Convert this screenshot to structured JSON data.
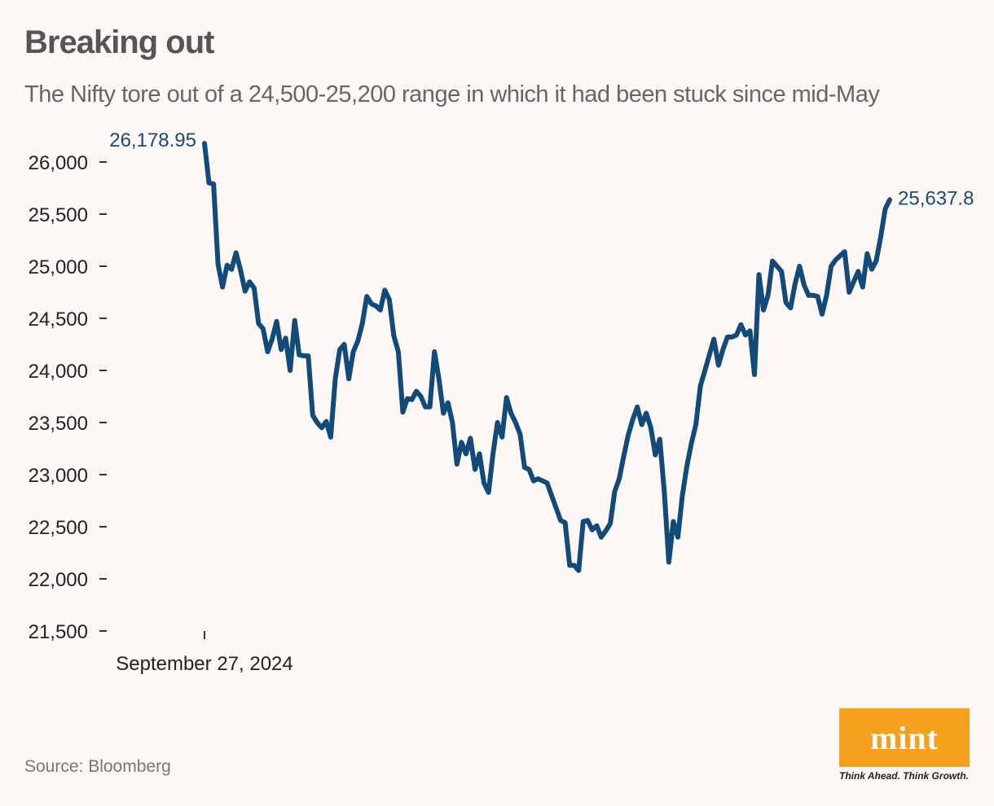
{
  "title": "Breaking out",
  "subtitle": "The Nifty tore out of a 24,500-25,200 range in which it had been stuck since mid-May",
  "source": "Source: Bloomberg",
  "logo": {
    "text": "mint",
    "tagline": "Think Ahead. Think Growth."
  },
  "colors": {
    "line": "#124a7a",
    "background": "#fdf7f6",
    "logo": "#f5a01e"
  },
  "chart_data": {
    "type": "line",
    "title": "Breaking out",
    "subtitle": "The Nifty tore out of a 24,500-25,200 range in which it had been stuck since mid-May",
    "ylim": [
      21500,
      26200
    ],
    "yticks": [
      {
        "value": 21500,
        "label": "21,500"
      },
      {
        "value": 22000,
        "label": "22,000"
      },
      {
        "value": 22500,
        "label": "22,500"
      },
      {
        "value": 23000,
        "label": "23,000"
      },
      {
        "value": 23500,
        "label": "23,500"
      },
      {
        "value": 24000,
        "label": "24,000"
      },
      {
        "value": 24500,
        "label": "24,500"
      },
      {
        "value": 25000,
        "label": "25,000"
      },
      {
        "value": 25500,
        "label": "25,500"
      },
      {
        "value": 26000,
        "label": "26,000"
      }
    ],
    "xtick_label": "September 27, 2024",
    "grid": false,
    "annotations": [
      {
        "point": "first",
        "label": "26,178.95"
      },
      {
        "point": "last",
        "label": "25,637.8"
      }
    ],
    "series": [
      {
        "values": [
          26178.95,
          25800,
          25790,
          25020,
          24800,
          25010,
          24970,
          25130,
          24960,
          24760,
          24850,
          24790,
          24450,
          24400,
          24180,
          24300,
          24470,
          24200,
          24310,
          24000,
          24480,
          24150,
          24140,
          24140,
          23570,
          23500,
          23450,
          23510,
          23360,
          23920,
          24200,
          24250,
          23920,
          24180,
          24280,
          24450,
          24710,
          24640,
          24620,
          24580,
          24770,
          24680,
          24330,
          24180,
          23600,
          23730,
          23720,
          23800,
          23750,
          23650,
          23650,
          24180,
          23920,
          23590,
          23690,
          23500,
          23100,
          23310,
          23200,
          23350,
          23050,
          23200,
          22920,
          22830,
          23200,
          23500,
          23360,
          23740,
          23590,
          23500,
          23390,
          23070,
          23050,
          22940,
          22960,
          22940,
          22920,
          22800,
          22680,
          22560,
          22540,
          22130,
          22130,
          22080,
          22550,
          22560,
          22470,
          22510,
          22400,
          22460,
          22530,
          22840,
          22960,
          23180,
          23380,
          23530,
          23650,
          23480,
          23590,
          23450,
          23190,
          23340,
          22830,
          22160,
          22550,
          22400,
          22800,
          23080,
          23300,
          23480,
          23850,
          24000,
          24150,
          24300,
          24050,
          24200,
          24320,
          24320,
          24340,
          24440,
          24340,
          24380,
          23960,
          24920,
          24580,
          24720,
          25050,
          25000,
          24950,
          24650,
          24600,
          24830,
          25000,
          24820,
          24720,
          24720,
          24710,
          24540,
          24720,
          25000,
          25060,
          25100,
          25140,
          24750,
          24850,
          24950,
          24800,
          25120,
          24970,
          25050,
          25280,
          25550,
          25637.8
        ]
      }
    ]
  }
}
